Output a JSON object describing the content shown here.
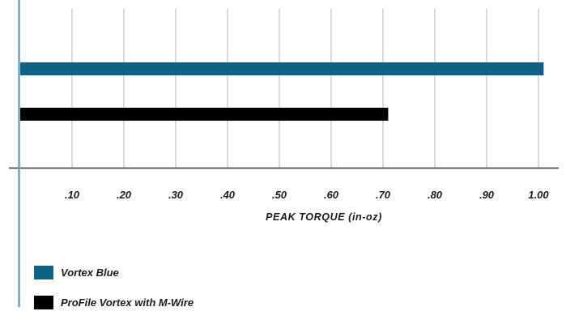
{
  "chart_data": {
    "type": "bar",
    "orientation": "horizontal",
    "categories": [
      "Vortex Blue",
      "ProFile Vortex with M-Wire"
    ],
    "values": [
      1.01,
      0.71
    ],
    "colors": [
      "#0e6384",
      "#000000"
    ],
    "xlabel": "PEAK TORQUE (in-oz)",
    "xlim": [
      0,
      1.05
    ],
    "xticks": [
      0.1,
      0.2,
      0.3,
      0.4,
      0.5,
      0.6,
      0.7,
      0.8,
      0.9,
      1.0
    ],
    "xtick_labels": [
      ".10",
      ".20",
      ".30",
      ".40",
      ".50",
      ".60",
      ".70",
      ".80",
      ".90",
      "1.00"
    ],
    "grid": "vertical",
    "legend": {
      "position": "bottom-left",
      "entries": [
        {
          "label": "Vortex Blue",
          "color": "#0e6384"
        },
        {
          "label": "ProFile Vortex with M-Wire",
          "color": "#000000"
        }
      ]
    }
  }
}
